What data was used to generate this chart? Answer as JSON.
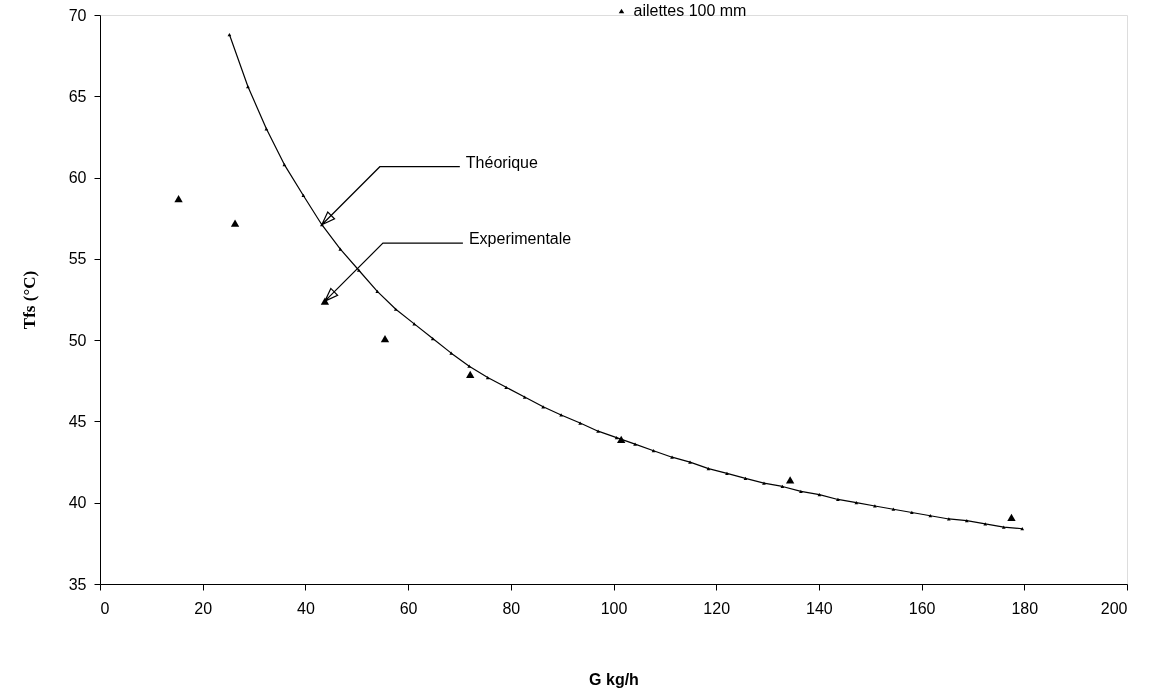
{
  "chart_data": {
    "type": "scatter",
    "xlabel": "G kg/h",
    "ylabel": "Tfs (°C)",
    "xlim": [
      0,
      200
    ],
    "ylim": [
      35,
      70
    ],
    "xticks": [
      0,
      20,
      40,
      60,
      80,
      100,
      120,
      140,
      160,
      180,
      200
    ],
    "yticks": [
      35,
      40,
      45,
      50,
      55,
      60,
      65,
      70
    ],
    "grid": false,
    "legend": "top right",
    "marker": "triangle",
    "series": [
      {
        "type": "line",
        "color": "#000000",
        "line_style": "solid",
        "x": [
          25.2,
          28.8,
          32.4,
          35.9,
          39.6,
          43.2,
          46.8,
          50.4,
          54.0,
          57.6,
          61.2,
          64.8,
          68.4,
          71.9,
          75.5,
          79.1,
          82.7,
          86.3,
          89.8,
          93.5,
          97.0,
          100.6,
          104.2,
          107.8,
          111.4,
          114.9,
          118.5,
          122.1,
          125.7,
          129.3,
          132.9,
          136.5,
          140.1,
          143.7,
          147.3,
          150.9,
          154.5,
          158.1,
          161.7,
          165.3,
          168.8,
          172.4,
          176.0,
          179.6
        ],
        "values": [
          68.8,
          65.6,
          63.0,
          60.8,
          58.9,
          57.1,
          55.6,
          54.3,
          53.0,
          51.9,
          51.0,
          50.1,
          49.2,
          48.4,
          47.7,
          47.1,
          46.5,
          45.9,
          45.4,
          44.9,
          44.4,
          44.0,
          43.6,
          43.2,
          42.8,
          42.5,
          42.1,
          41.8,
          41.5,
          41.2,
          41.0,
          40.7,
          40.5,
          40.2,
          40.0,
          39.8,
          39.6,
          39.4,
          39.2,
          39.0,
          38.9,
          38.7,
          38.5,
          38.4
        ]
      },
      {
        "name": "ailettes 100 mm",
        "color": "#000000",
        "x": [
          15.3,
          26.3,
          43.8,
          55.5,
          72.1,
          101.5,
          134.4,
          177.5
        ],
        "values": [
          58.7,
          57.2,
          52.4,
          50.1,
          47.9,
          43.9,
          41.4,
          39.1
        ]
      }
    ],
    "annotations": [
      {
        "text": "Théorique",
        "x": 43.2,
        "y": 57.1
      },
      {
        "text": "Experimentale",
        "x": 43.8,
        "y": 52.4
      }
    ]
  }
}
